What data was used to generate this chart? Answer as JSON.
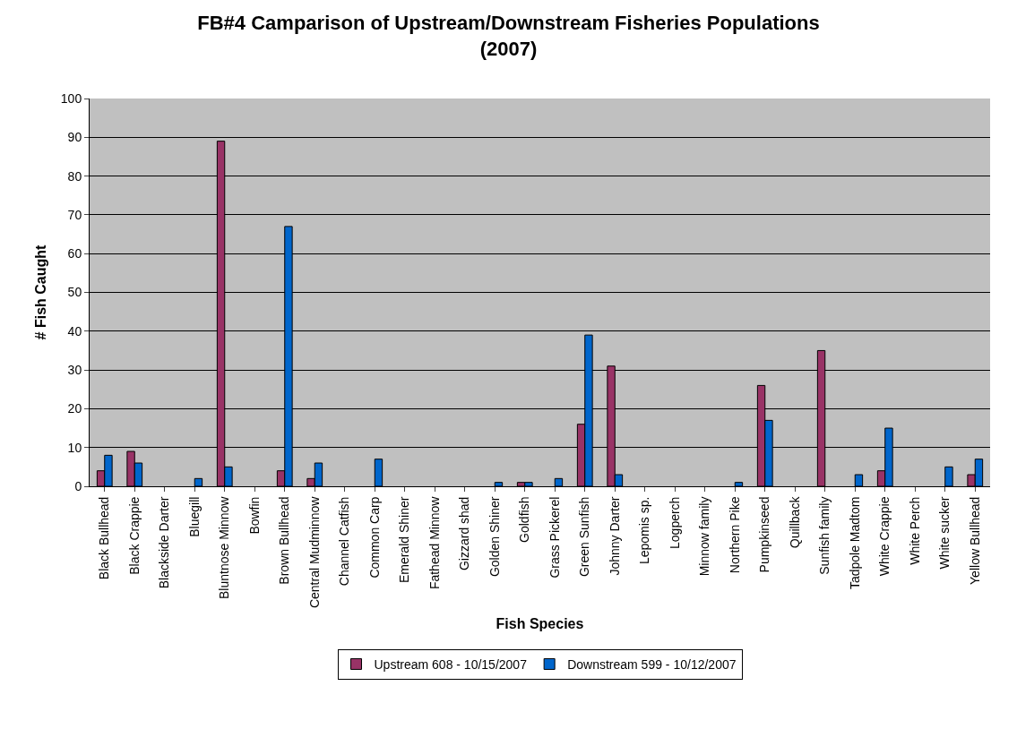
{
  "chart_data": {
    "type": "bar",
    "title": "FB#4 Camparison of Upstream/Downstream Fisheries Populations (2007)",
    "xlabel": "Fish Species",
    "ylabel": "# Fish Caught",
    "categories": [
      "Black Bullhead",
      "Black Crappie",
      "Blackside Darter",
      "Bluegill",
      "Bluntnose Minnow",
      "Bowfin",
      "Brown Bullhead",
      "Central Mudminnow",
      "Channel Catfish",
      "Common Carp",
      "Emerald Shiner",
      "Fathead Minnow",
      "Gizzard shad",
      "Golden Shiner",
      "Goldfish",
      "Grass Pickerel",
      "Green Sunfish",
      "Johnny Darter",
      "Lepomis sp.",
      "Logperch",
      "Minnow family",
      "Northern Pike",
      "Pumpkinseed",
      "Quillback",
      "Sunfish family",
      "Tadpole Madtom",
      "White Crappie",
      "White Perch",
      "White sucker",
      "Yellow Bullhead"
    ],
    "series": [
      {
        "name": "Upstream 608 - 10/15/2007",
        "color": "#993366",
        "values": [
          4,
          9,
          0,
          0,
          89,
          0,
          4,
          2,
          0,
          0,
          0,
          0,
          0,
          0,
          1,
          0,
          16,
          31,
          0,
          0,
          0,
          0,
          26,
          0,
          35,
          0,
          4,
          0,
          0,
          3
        ]
      },
      {
        "name": "Downstream 599 - 10/12/2007",
        "color": "#0066cc",
        "values": [
          8,
          6,
          0,
          2,
          5,
          0,
          67,
          6,
          0,
          7,
          0,
          0,
          0,
          1,
          1,
          2,
          39,
          3,
          0,
          0,
          0,
          1,
          17,
          0,
          0,
          3,
          15,
          0,
          5,
          7
        ]
      }
    ],
    "ylim": [
      0,
      100
    ],
    "yticks": [
      0,
      10,
      20,
      30,
      40,
      50,
      60,
      70,
      80,
      90,
      100
    ],
    "grid": "y",
    "legend": "bottom"
  }
}
